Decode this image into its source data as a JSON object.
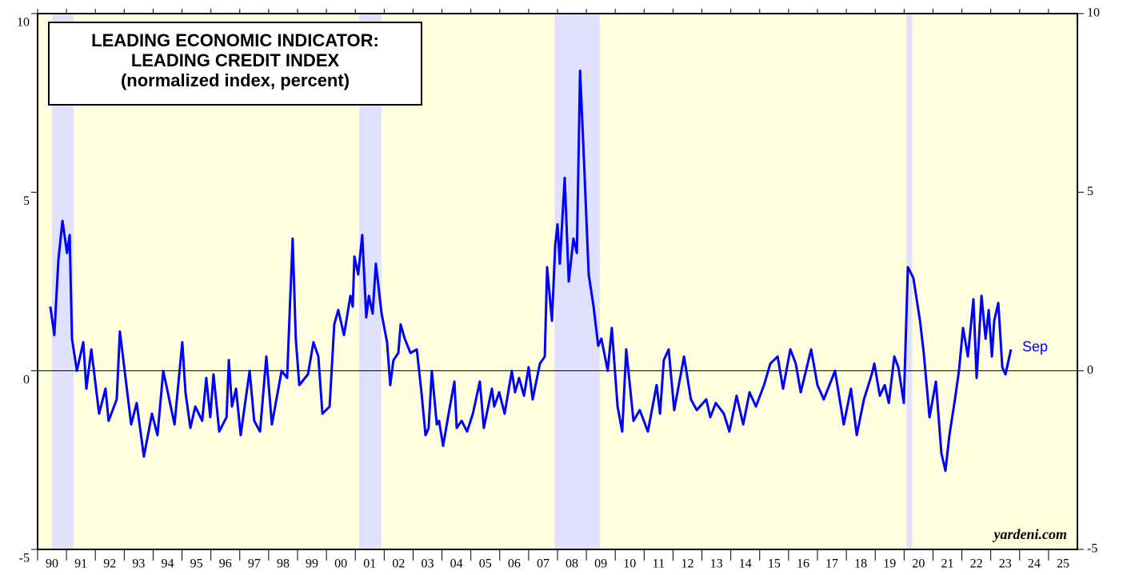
{
  "chart_data": {
    "type": "line",
    "title": [
      "LEADING ECONOMIC INDICATOR:",
      "LEADING CREDIT INDEX",
      "(normalized index, percent)"
    ],
    "watermark": "yardeni.com",
    "annotation": "Sep",
    "xlim": [
      1990,
      2026
    ],
    "xticks": [
      {
        "value": 1990,
        "label": "90"
      },
      {
        "value": 1991,
        "label": "91"
      },
      {
        "value": 1992,
        "label": "92"
      },
      {
        "value": 1993,
        "label": "93"
      },
      {
        "value": 1994,
        "label": "94"
      },
      {
        "value": 1995,
        "label": "95"
      },
      {
        "value": 1996,
        "label": "96"
      },
      {
        "value": 1997,
        "label": "97"
      },
      {
        "value": 1998,
        "label": "98"
      },
      {
        "value": 1999,
        "label": "99"
      },
      {
        "value": 2000,
        "label": "00"
      },
      {
        "value": 2001,
        "label": "01"
      },
      {
        "value": 2002,
        "label": "02"
      },
      {
        "value": 2003,
        "label": "03"
      },
      {
        "value": 2004,
        "label": "04"
      },
      {
        "value": 2005,
        "label": "05"
      },
      {
        "value": 2006,
        "label": "06"
      },
      {
        "value": 2007,
        "label": "07"
      },
      {
        "value": 2008,
        "label": "08"
      },
      {
        "value": 2009,
        "label": "09"
      },
      {
        "value": 2010,
        "label": "10"
      },
      {
        "value": 2011,
        "label": "11"
      },
      {
        "value": 2012,
        "label": "12"
      },
      {
        "value": 2013,
        "label": "13"
      },
      {
        "value": 2014,
        "label": "14"
      },
      {
        "value": 2015,
        "label": "15"
      },
      {
        "value": 2016,
        "label": "16"
      },
      {
        "value": 2017,
        "label": "17"
      },
      {
        "value": 2018,
        "label": "18"
      },
      {
        "value": 2019,
        "label": "19"
      },
      {
        "value": 2020,
        "label": "20"
      },
      {
        "value": 2021,
        "label": "21"
      },
      {
        "value": 2022,
        "label": "22"
      },
      {
        "value": 2023,
        "label": "23"
      },
      {
        "value": 2024,
        "label": "24"
      },
      {
        "value": 2025,
        "label": "25"
      }
    ],
    "ylim": [
      -5,
      10
    ],
    "yticks": [
      -5,
      0,
      5,
      10
    ],
    "zero_line": true,
    "background_color": "#ffffe0",
    "recession_color": "#e0e0ff",
    "recessions": [
      [
        1990.5,
        1991.25
      ],
      [
        2001.13,
        2001.9
      ],
      [
        2007.9,
        2009.47
      ],
      [
        2020.08,
        2020.28
      ]
    ],
    "series": [
      {
        "name": "Leading Credit Index",
        "color": "#0000ff",
        "x": [
          1990.44,
          1990.58,
          1990.72,
          1990.86,
          1991.02,
          1991.11,
          1991.19,
          1991.36,
          1991.58,
          1991.69,
          1991.86,
          1992.13,
          1992.35,
          1992.46,
          1992.74,
          1992.85,
          1993.24,
          1993.43,
          1993.68,
          1993.96,
          1994.15,
          1994.35,
          1994.74,
          1995.01,
          1995.12,
          1995.29,
          1995.46,
          1995.7,
          1995.84,
          1995.98,
          1996.09,
          1996.29,
          1996.54,
          1996.62,
          1996.73,
          1996.87,
          1997.03,
          1997.34,
          1997.5,
          1997.7,
          1997.92,
          1998.11,
          1998.45,
          1998.64,
          1998.72,
          1998.83,
          1998.94,
          1999.06,
          1999.36,
          1999.55,
          1999.72,
          1999.86,
          2000.11,
          2000.27,
          2000.41,
          2000.61,
          2000.83,
          2000.91,
          2000.97,
          2001.1,
          2001.24,
          2001.38,
          2001.47,
          2001.6,
          2001.71,
          2001.91,
          2002.1,
          2002.21,
          2002.32,
          2002.49,
          2002.57,
          2002.71,
          2002.91,
          2003.13,
          2003.29,
          2003.43,
          2003.54,
          2003.65,
          2003.82,
          2003.9,
          2004.04,
          2004.23,
          2004.43,
          2004.51,
          2004.68,
          2004.87,
          2005.07,
          2005.31,
          2005.45,
          2005.73,
          2005.81,
          2005.98,
          2006.17,
          2006.42,
          2006.53,
          2006.67,
          2006.84,
          2007.0,
          2007.14,
          2007.39,
          2007.56,
          2007.64,
          2007.81,
          2007.92,
          2008.0,
          2008.08,
          2008.25,
          2008.39,
          2008.55,
          2008.67,
          2008.78,
          2008.91,
          2009.08,
          2009.25,
          2009.41,
          2009.52,
          2009.74,
          2009.88,
          2010.08,
          2010.24,
          2010.38,
          2010.63,
          2010.85,
          2011.13,
          2011.43,
          2011.55,
          2011.68,
          2011.85,
          2012.04,
          2012.38,
          2012.62,
          2012.82,
          2013.15,
          2013.29,
          2013.48,
          2013.76,
          2013.95,
          2014.2,
          2014.43,
          2014.65,
          2014.87,
          2015.15,
          2015.37,
          2015.62,
          2015.81,
          2016.06,
          2016.25,
          2016.42,
          2016.78,
          2017.0,
          2017.22,
          2017.61,
          2017.91,
          2018.16,
          2018.36,
          2018.61,
          2018.88,
          2018.97,
          2019.16,
          2019.33,
          2019.47,
          2019.66,
          2019.8,
          2019.99,
          2020.13,
          2020.32,
          2020.55,
          2020.68,
          2020.88,
          2021.1,
          2021.29,
          2021.43,
          2021.57,
          2021.76,
          2021.9,
          2022.04,
          2022.21,
          2022.4,
          2022.51,
          2022.68,
          2022.82,
          2022.93,
          2023.04,
          2023.12,
          2023.26,
          2023.4,
          2023.51,
          2023.7
        ],
        "values": [
          1.8,
          1.0,
          3.1,
          4.2,
          3.3,
          3.8,
          0.9,
          0.0,
          0.8,
          -0.5,
          0.6,
          -1.2,
          -0.5,
          -1.4,
          -0.8,
          1.1,
          -1.5,
          -0.9,
          -2.4,
          -1.2,
          -1.8,
          0.0,
          -1.5,
          0.8,
          -0.6,
          -1.6,
          -1.0,
          -1.4,
          -0.2,
          -1.3,
          -0.1,
          -1.7,
          -1.3,
          0.3,
          -1.0,
          -0.5,
          -1.8,
          0.0,
          -1.4,
          -1.7,
          0.4,
          -1.5,
          0.0,
          -0.2,
          1.5,
          3.7,
          0.9,
          -0.4,
          -0.1,
          0.8,
          0.4,
          -1.2,
          -1.0,
          1.3,
          1.7,
          1.0,
          2.1,
          1.8,
          3.2,
          2.7,
          3.8,
          1.5,
          2.1,
          1.6,
          3.0,
          1.6,
          0.8,
          -0.4,
          0.3,
          0.5,
          1.3,
          0.9,
          0.5,
          0.6,
          -0.6,
          -1.8,
          -1.6,
          0.0,
          -1.5,
          -1.4,
          -2.1,
          -1.2,
          -0.3,
          -1.6,
          -1.4,
          -1.7,
          -1.2,
          -0.3,
          -1.6,
          -0.5,
          -1.0,
          -0.6,
          -1.2,
          0.0,
          -0.6,
          -0.2,
          -0.7,
          0.1,
          -0.8,
          0.2,
          0.4,
          2.9,
          1.4,
          3.5,
          4.1,
          3.0,
          5.4,
          2.5,
          3.7,
          3.3,
          8.4,
          6.0,
          2.7,
          1.8,
          0.7,
          0.9,
          0.0,
          1.2,
          -1.0,
          -1.7,
          0.6,
          -1.4,
          -1.1,
          -1.7,
          -0.4,
          -1.2,
          0.3,
          0.6,
          -1.1,
          0.4,
          -0.8,
          -1.1,
          -0.8,
          -1.3,
          -0.9,
          -1.2,
          -1.7,
          -0.7,
          -1.5,
          -0.6,
          -1.0,
          -0.4,
          0.2,
          0.4,
          -0.5,
          0.6,
          0.2,
          -0.6,
          0.6,
          -0.4,
          -0.8,
          0.0,
          -1.5,
          -0.5,
          -1.8,
          -0.8,
          -0.1,
          0.2,
          -0.7,
          -0.4,
          -0.9,
          0.4,
          0.1,
          -0.9,
          2.9,
          2.6,
          1.4,
          0.5,
          -1.3,
          -0.3,
          -2.3,
          -2.8,
          -1.8,
          -0.8,
          0.0,
          1.2,
          0.4,
          2.0,
          -0.2,
          2.1,
          0.9,
          1.7,
          0.4,
          1.4,
          1.9,
          0.1,
          -0.1,
          0.6
        ]
      }
    ]
  }
}
